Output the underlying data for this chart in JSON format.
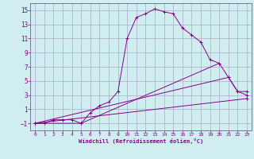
{
  "background_color": "#d0eef0",
  "grid_color": "#aaaacc",
  "line_color": "#880088",
  "xlim": [
    -0.5,
    23.5
  ],
  "ylim": [
    -2.0,
    16.0
  ],
  "xticks": [
    0,
    1,
    2,
    3,
    4,
    5,
    6,
    7,
    8,
    9,
    10,
    11,
    12,
    13,
    14,
    15,
    16,
    17,
    18,
    19,
    20,
    21,
    22,
    23
  ],
  "yticks": [
    -1,
    1,
    3,
    5,
    7,
    9,
    11,
    13,
    15
  ],
  "xlabel": "Windchill (Refroidissement éolien,°C)",
  "series": [
    [
      0,
      -1
    ],
    [
      1,
      -1
    ],
    [
      2,
      -0.5
    ],
    [
      3,
      -0.5
    ],
    [
      4,
      -0.5
    ],
    [
      5,
      -1
    ],
    [
      6,
      0.5
    ],
    [
      7,
      1.5
    ],
    [
      8,
      2
    ],
    [
      9,
      3.5
    ],
    [
      10,
      11
    ],
    [
      11,
      14
    ],
    [
      12,
      14.5
    ],
    [
      13,
      15.2
    ],
    [
      14,
      14.8
    ],
    [
      15,
      14.5
    ],
    [
      16,
      12.5
    ],
    [
      17,
      11.5
    ],
    [
      18,
      10.5
    ],
    [
      19,
      8.0
    ],
    [
      20,
      7.5
    ],
    [
      21,
      5.5
    ],
    [
      22,
      3.5
    ],
    [
      23,
      3.0
    ]
  ],
  "line2": [
    [
      0,
      -1
    ],
    [
      5,
      -1
    ],
    [
      20,
      7.5
    ]
  ],
  "line3": [
    [
      0,
      -1
    ],
    [
      23,
      2.5
    ]
  ],
  "line4": [
    [
      0,
      -1
    ],
    [
      21,
      5.5
    ],
    [
      22,
      3.5
    ],
    [
      23,
      3.5
    ]
  ]
}
